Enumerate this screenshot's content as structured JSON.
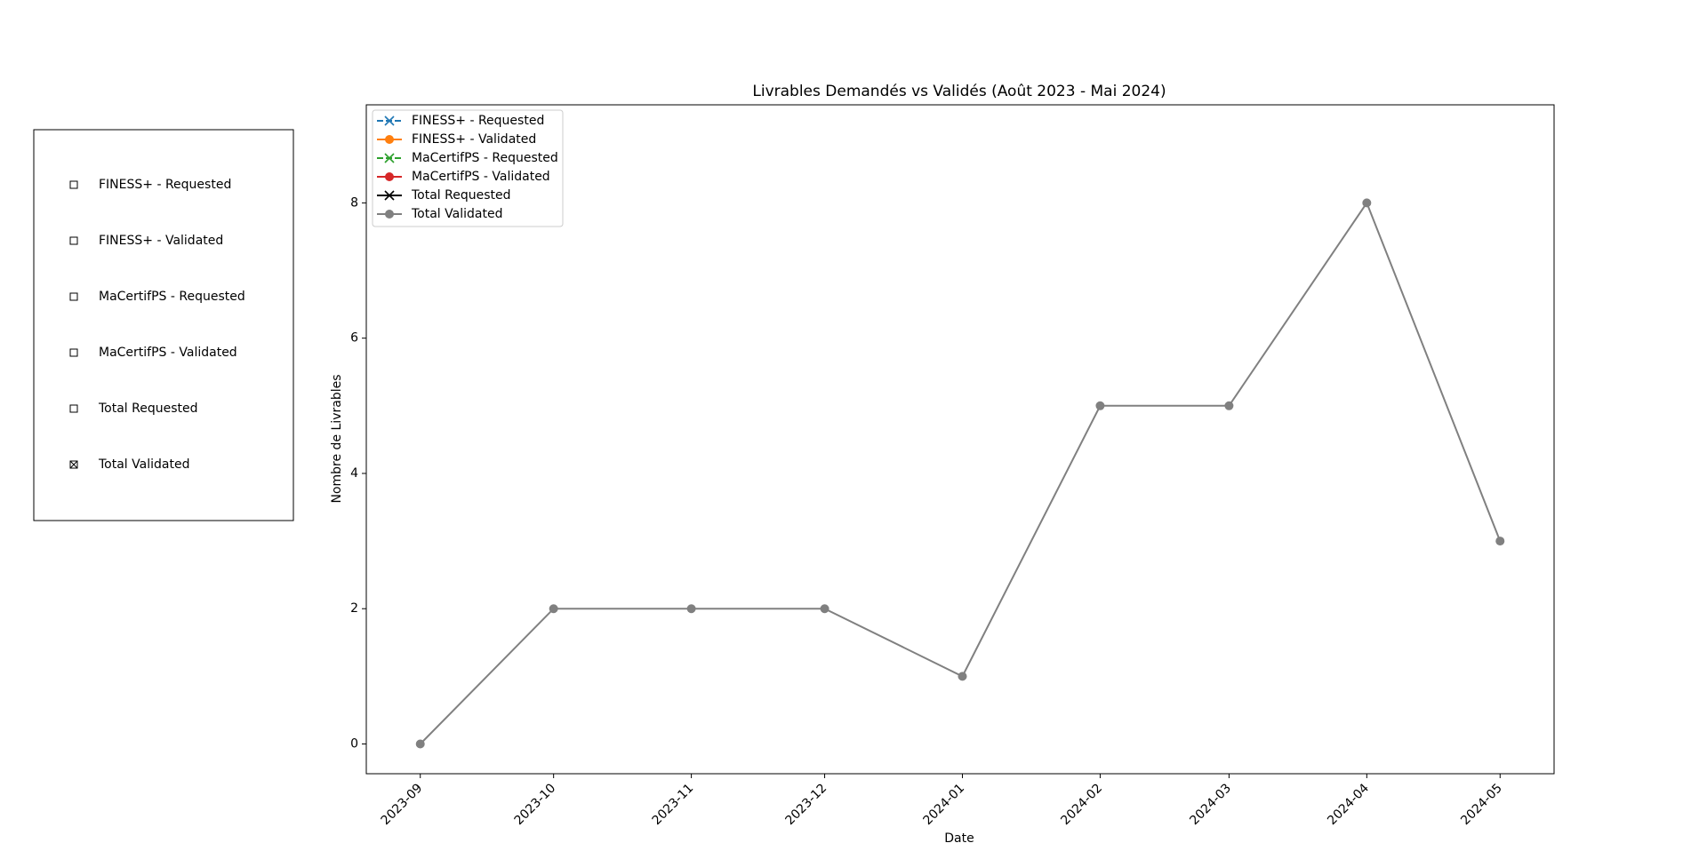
{
  "chart_data": {
    "type": "line",
    "title": "Livrables Demandés vs Validés (Août 2023 - Mai 2024)",
    "xlabel": "Date",
    "ylabel": "Nombre de Livrables",
    "x": [
      "2023-09",
      "2023-10",
      "2023-11",
      "2023-12",
      "2024-01",
      "2024-02",
      "2024-03",
      "2024-04",
      "2024-05"
    ],
    "ylim": [
      -0.44,
      9.45
    ],
    "yticks": [
      0,
      2,
      4,
      6,
      8
    ],
    "legend": "upper left",
    "series": [
      {
        "name": "FINESS+ - Requested",
        "color": "#1f77b4",
        "marker": "x",
        "dashed": true,
        "visible": false
      },
      {
        "name": "FINESS+ - Validated",
        "color": "#ff7f0e",
        "marker": "o",
        "dashed": false,
        "visible": false
      },
      {
        "name": "MaCertifPS - Requested",
        "color": "#2ca02c",
        "marker": "x",
        "dashed": true,
        "visible": false
      },
      {
        "name": "MaCertifPS - Validated",
        "color": "#d62728",
        "marker": "o",
        "dashed": false,
        "visible": false
      },
      {
        "name": "Total Requested",
        "color": "#000000",
        "marker": "x",
        "dashed": false,
        "visible": false
      },
      {
        "name": "Total Validated",
        "color": "#808080",
        "marker": "o",
        "dashed": false,
        "visible": true,
        "values": [
          0,
          2,
          2,
          2,
          1,
          5,
          5,
          8,
          3
        ]
      }
    ]
  }
}
